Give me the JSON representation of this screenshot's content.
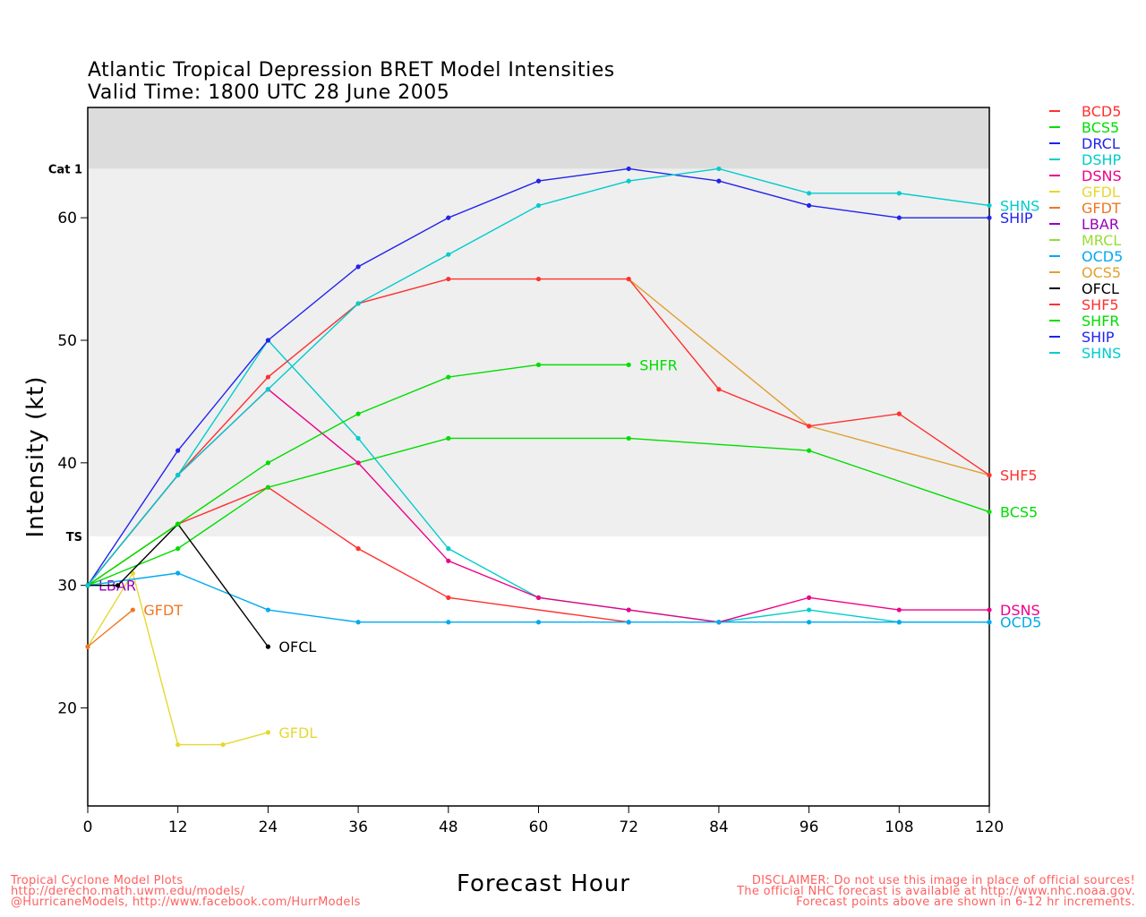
{
  "header": {
    "title_line1": "Atlantic Tropical Depression BRET Model Intensities",
    "title_line2": "Valid Time: 1800 UTC 28 June 2005"
  },
  "footer": {
    "left": [
      "Tropical Cyclone Model Plots",
      "http://derecho.math.uwm.edu/models/",
      "@HurricaneModels, http://www.facebook.com/HurrModels"
    ],
    "right": [
      "DISCLAIMER: Do not use this image in place of official sources!",
      "The official NHC forecast is available at http://www.nhc.noaa.gov.",
      "Forecast points above are shown in 6-12 hr increments."
    ]
  },
  "chart_data": {
    "type": "line",
    "xlabel": "Forecast Hour",
    "ylabel": "Intensity (kt)",
    "xlim": [
      0,
      120
    ],
    "ylim": [
      12,
      69
    ],
    "xticks": [
      0,
      12,
      24,
      36,
      48,
      60,
      72,
      84,
      96,
      108,
      120
    ],
    "yticks": [
      20,
      30,
      40,
      50,
      60
    ],
    "bands": [
      {
        "label": "TS",
        "from": 34,
        "to": 64,
        "color": "#efefef"
      },
      {
        "label": "Cat 1",
        "from": 64,
        "to": 69,
        "color": "#dcdcdc"
      }
    ],
    "series": [
      {
        "name": "BCD5",
        "color": "#ff3030",
        "x": [
          0,
          12,
          24,
          36,
          48,
          72
        ],
        "y": [
          30,
          35,
          38,
          33,
          29,
          27
        ],
        "end_label": null
      },
      {
        "name": "BCS5",
        "color": "#00dd00",
        "x": [
          0,
          12,
          24,
          48,
          72,
          96,
          120
        ],
        "y": [
          30,
          33,
          38,
          42,
          42,
          41,
          36
        ],
        "end_label": "BCS5"
      },
      {
        "name": "DRCL",
        "color": "#2222ee",
        "x": [],
        "y": [],
        "end_label": null
      },
      {
        "name": "DSHP",
        "color": "#00cccc",
        "x": [
          0,
          12,
          24,
          36,
          48,
          60,
          72,
          84,
          96,
          108,
          120
        ],
        "y": [
          30,
          39,
          50,
          42,
          33,
          29,
          28,
          27,
          28,
          27,
          27
        ],
        "end_label": null
      },
      {
        "name": "DSNS",
        "color": "#ee0088",
        "x": [
          0,
          12,
          24,
          36,
          48,
          60,
          72,
          84,
          96,
          108,
          120
        ],
        "y": [
          30,
          39,
          46,
          40,
          32,
          29,
          28,
          27,
          29,
          28,
          28
        ],
        "end_label": "DSNS"
      },
      {
        "name": "GFDL",
        "color": "#e6d830",
        "x": [
          0,
          6,
          12,
          18,
          24
        ],
        "y": [
          25,
          31,
          17,
          17,
          18
        ],
        "end_label": "GFDL"
      },
      {
        "name": "GFDT",
        "color": "#ee7722",
        "x": [
          0,
          6
        ],
        "y": [
          25,
          28
        ],
        "end_label": "GFDT"
      },
      {
        "name": "LBAR",
        "color": "#9900bb",
        "x": [
          0
        ],
        "y": [
          30
        ],
        "end_label": "LBAR"
      },
      {
        "name": "MRCL",
        "color": "#99dd33",
        "x": [
          0,
          12
        ],
        "y": [
          30,
          35
        ],
        "end_label": null
      },
      {
        "name": "OCD5",
        "color": "#00aaee",
        "x": [
          0,
          12,
          24,
          36,
          48,
          60,
          72,
          84,
          96,
          108,
          120
        ],
        "y": [
          30,
          31,
          28,
          27,
          27,
          27,
          27,
          27,
          27,
          27,
          27
        ],
        "end_label": "OCD5"
      },
      {
        "name": "OCS5",
        "color": "#e0a030",
        "x": [
          72,
          96,
          120
        ],
        "y": [
          55,
          43,
          39
        ],
        "end_label": null
      },
      {
        "name": "OFCL",
        "color": "#000000",
        "x": [
          0,
          4,
          12,
          24
        ],
        "y": [
          30,
          30,
          35,
          25
        ],
        "end_label": "OFCL"
      },
      {
        "name": "SHF5",
        "color": "#ff3030",
        "x": [
          0,
          12,
          24,
          36,
          48,
          60,
          72,
          84,
          96,
          108,
          120
        ],
        "y": [
          30,
          39,
          47,
          53,
          55,
          55,
          55,
          46,
          43,
          44,
          39
        ],
        "end_label": "SHF5"
      },
      {
        "name": "SHFR",
        "color": "#00dd00",
        "x": [
          0,
          12,
          24,
          36,
          48,
          60,
          72
        ],
        "y": [
          30,
          35,
          40,
          44,
          47,
          48,
          48
        ],
        "end_label": "SHFR"
      },
      {
        "name": "SHIP",
        "color": "#2222ee",
        "x": [
          0,
          12,
          24,
          36,
          48,
          60,
          72,
          84,
          96,
          108,
          120
        ],
        "y": [
          30,
          41,
          50,
          56,
          60,
          63,
          64,
          63,
          61,
          60,
          60
        ],
        "end_label": "SHIP"
      },
      {
        "name": "SHNS",
        "color": "#00cccc",
        "x": [
          0,
          12,
          24,
          36,
          48,
          60,
          72,
          84,
          96,
          108,
          120
        ],
        "y": [
          30,
          39,
          46,
          53,
          57,
          61,
          63,
          64,
          62,
          62,
          61
        ],
        "end_label": "SHNS"
      }
    ]
  }
}
